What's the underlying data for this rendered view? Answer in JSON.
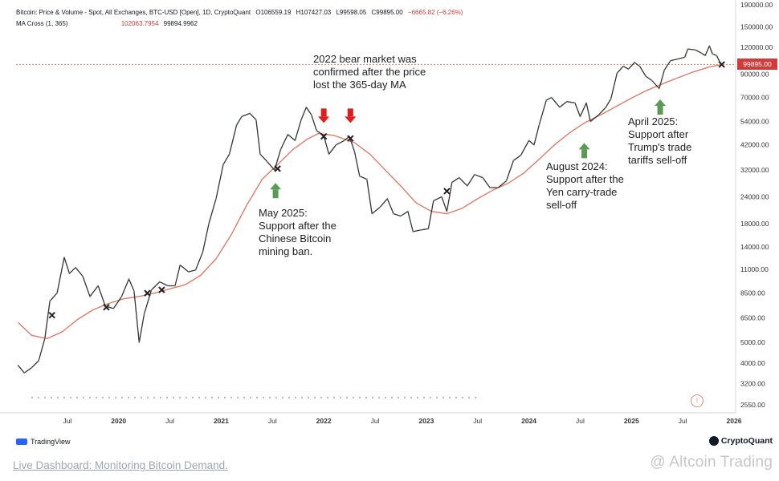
{
  "header": {
    "title": "Bitcoin: Price & Volume - Spot, All Exchanges, BTC-USD [Open], 1D, CryptoQuant",
    "o": "O106559.19",
    "h": "H107427.03",
    "l": "L99598.05",
    "c": "C99895.00",
    "chg": "−6665.82 (−6.26%)",
    "ma_label": "MA Cross (1, 365)",
    "ma_val1": "102063.7954",
    "ma_val2": "99894.9962"
  },
  "current_price_tag": "99895.00",
  "annotations": {
    "bear": "2022 bear market was\nconfirmed after the price\nlost the 365-day MA",
    "may": "May 2025:\nSupport after the\nChinese Bitcoin\nmining ban.",
    "aug": "August 2024:\nSupport after the\nYen carry-trade\nsell-off",
    "apr": "April 2025:\nSupport after\nTrump's trade\ntariffs sell-off"
  },
  "footer": {
    "tradingview": "TradingView",
    "cryptoquant": "CryptoQuant",
    "link": "Live Dashboard: Monitoring Bitcoin Demand.",
    "watermark": "@ Altcoin Trading",
    "event_icon": "!"
  },
  "chart_data": {
    "type": "line",
    "y_scale": "log",
    "ylim": [
      2550,
      190000
    ],
    "y_ticks": [
      "190000.00",
      "150000.00",
      "120000.00",
      "90000.00",
      "70000.00",
      "54000.00",
      "42000.00",
      "32000.00",
      "24000.00",
      "18000.00",
      "14000.00",
      "11000.00",
      "8500.00",
      "6500.00",
      "5000.00",
      "4000.00",
      "3200.00",
      "2550.00"
    ],
    "x_ticks": [
      {
        "label": "Jul",
        "t": 2019.5,
        "year": false
      },
      {
        "label": "2020",
        "t": 2020.0,
        "year": true
      },
      {
        "label": "Jul",
        "t": 2020.5,
        "year": false
      },
      {
        "label": "2021",
        "t": 2021.0,
        "year": true
      },
      {
        "label": "Jul",
        "t": 2021.5,
        "year": false
      },
      {
        "label": "2022",
        "t": 2022.0,
        "year": true
      },
      {
        "label": "Jul",
        "t": 2022.5,
        "year": false
      },
      {
        "label": "2023",
        "t": 2023.0,
        "year": true
      },
      {
        "label": "Jul",
        "t": 2023.5,
        "year": false
      },
      {
        "label": "2024",
        "t": 2024.0,
        "year": true
      },
      {
        "label": "Jul",
        "t": 2024.5,
        "year": false
      },
      {
        "label": "2025",
        "t": 2025.0,
        "year": true
      },
      {
        "label": "Jul",
        "t": 2025.5,
        "year": false
      },
      {
        "label": "2026",
        "t": 2026.0,
        "year": true
      }
    ],
    "xlim": [
      2019.0,
      2026.0
    ],
    "series": [
      {
        "role": "price",
        "color": "#333333",
        "points": [
          [
            2019.02,
            3900
          ],
          [
            2019.08,
            3600
          ],
          [
            2019.15,
            3800
          ],
          [
            2019.22,
            4100
          ],
          [
            2019.28,
            5200
          ],
          [
            2019.33,
            7800
          ],
          [
            2019.4,
            8500
          ],
          [
            2019.47,
            12500
          ],
          [
            2019.52,
            10500
          ],
          [
            2019.58,
            11200
          ],
          [
            2019.65,
            10200
          ],
          [
            2019.72,
            8200
          ],
          [
            2019.8,
            9200
          ],
          [
            2019.87,
            7400
          ],
          [
            2019.95,
            7200
          ],
          [
            2020.03,
            8200
          ],
          [
            2020.1,
            9900
          ],
          [
            2020.15,
            8700
          ],
          [
            2020.2,
            5000
          ],
          [
            2020.25,
            6800
          ],
          [
            2020.32,
            8800
          ],
          [
            2020.4,
            9600
          ],
          [
            2020.48,
            9200
          ],
          [
            2020.55,
            9200
          ],
          [
            2020.6,
            11500
          ],
          [
            2020.68,
            10700
          ],
          [
            2020.75,
            10900
          ],
          [
            2020.82,
            13200
          ],
          [
            2020.88,
            18000
          ],
          [
            2020.95,
            23500
          ],
          [
            2021.02,
            34000
          ],
          [
            2021.08,
            38000
          ],
          [
            2021.15,
            52000
          ],
          [
            2021.2,
            57000
          ],
          [
            2021.28,
            59000
          ],
          [
            2021.34,
            55000
          ],
          [
            2021.38,
            38000
          ],
          [
            2021.45,
            35000
          ],
          [
            2021.52,
            32000
          ],
          [
            2021.58,
            40000
          ],
          [
            2021.65,
            47000
          ],
          [
            2021.72,
            44000
          ],
          [
            2021.78,
            55000
          ],
          [
            2021.83,
            63000
          ],
          [
            2021.88,
            58000
          ],
          [
            2021.93,
            49000
          ],
          [
            2022.0,
            46500
          ],
          [
            2022.05,
            38000
          ],
          [
            2022.12,
            42000
          ],
          [
            2022.2,
            44000
          ],
          [
            2022.25,
            46000
          ],
          [
            2022.3,
            39000
          ],
          [
            2022.35,
            30000
          ],
          [
            2022.42,
            29000
          ],
          [
            2022.47,
            20000
          ],
          [
            2022.55,
            21500
          ],
          [
            2022.62,
            23500
          ],
          [
            2022.68,
            20000
          ],
          [
            2022.75,
            19500
          ],
          [
            2022.82,
            20500
          ],
          [
            2022.87,
            16500
          ],
          [
            2022.95,
            16800
          ],
          [
            2023.02,
            17000
          ],
          [
            2023.07,
            23000
          ],
          [
            2023.15,
            24000
          ],
          [
            2023.2,
            20500
          ],
          [
            2023.25,
            28000
          ],
          [
            2023.32,
            29500
          ],
          [
            2023.4,
            27000
          ],
          [
            2023.47,
            30500
          ],
          [
            2023.55,
            29500
          ],
          [
            2023.62,
            26500
          ],
          [
            2023.7,
            26500
          ],
          [
            2023.78,
            28500
          ],
          [
            2023.85,
            35500
          ],
          [
            2023.92,
            37500
          ],
          [
            2024.0,
            44000
          ],
          [
            2024.05,
            42000
          ],
          [
            2024.1,
            52000
          ],
          [
            2024.17,
            68000
          ],
          [
            2024.22,
            70000
          ],
          [
            2024.3,
            63000
          ],
          [
            2024.37,
            67000
          ],
          [
            2024.45,
            66000
          ],
          [
            2024.5,
            57000
          ],
          [
            2024.56,
            66000
          ],
          [
            2024.6,
            54000
          ],
          [
            2024.68,
            58000
          ],
          [
            2024.75,
            63000
          ],
          [
            2024.8,
            69000
          ],
          [
            2024.86,
            91000
          ],
          [
            2024.92,
            98000
          ],
          [
            2024.97,
            95000
          ],
          [
            2025.03,
            102000
          ],
          [
            2025.08,
            98000
          ],
          [
            2025.14,
            88000
          ],
          [
            2025.2,
            84000
          ],
          [
            2025.27,
            77000
          ],
          [
            2025.32,
            94000
          ],
          [
            2025.38,
            104000
          ],
          [
            2025.45,
            106000
          ],
          [
            2025.52,
            108000
          ],
          [
            2025.55,
            118000
          ],
          [
            2025.62,
            117000
          ],
          [
            2025.68,
            113000
          ],
          [
            2025.72,
            110000
          ],
          [
            2025.76,
            122000
          ],
          [
            2025.79,
            112000
          ],
          [
            2025.83,
            110000
          ],
          [
            2025.86,
            103000
          ],
          [
            2025.88,
            99895
          ]
        ]
      },
      {
        "role": "ma365",
        "color": "#e07b6a",
        "points": [
          [
            2019.02,
            6200
          ],
          [
            2019.15,
            5400
          ],
          [
            2019.3,
            5200
          ],
          [
            2019.45,
            5600
          ],
          [
            2019.6,
            6400
          ],
          [
            2019.75,
            7100
          ],
          [
            2019.9,
            7600
          ],
          [
            2020.05,
            8000
          ],
          [
            2020.2,
            8200
          ],
          [
            2020.35,
            8500
          ],
          [
            2020.5,
            8900
          ],
          [
            2020.65,
            9300
          ],
          [
            2020.8,
            10300
          ],
          [
            2020.95,
            12300
          ],
          [
            2021.1,
            16000
          ],
          [
            2021.25,
            22000
          ],
          [
            2021.4,
            29000
          ],
          [
            2021.55,
            34000
          ],
          [
            2021.7,
            40000
          ],
          [
            2021.85,
            45000
          ],
          [
            2021.95,
            47500
          ],
          [
            2022.1,
            46500
          ],
          [
            2022.3,
            43000
          ],
          [
            2022.45,
            38000
          ],
          [
            2022.6,
            32000
          ],
          [
            2022.75,
            27000
          ],
          [
            2022.9,
            22500
          ],
          [
            2023.05,
            20500
          ],
          [
            2023.2,
            20000
          ],
          [
            2023.35,
            21200
          ],
          [
            2023.5,
            23500
          ],
          [
            2023.65,
            25800
          ],
          [
            2023.8,
            27800
          ],
          [
            2023.95,
            31000
          ],
          [
            2024.1,
            36000
          ],
          [
            2024.25,
            42000
          ],
          [
            2024.4,
            48000
          ],
          [
            2024.55,
            53500
          ],
          [
            2024.7,
            58000
          ],
          [
            2024.85,
            63500
          ],
          [
            2025.0,
            69500
          ],
          [
            2025.15,
            75500
          ],
          [
            2025.3,
            81000
          ],
          [
            2025.45,
            86500
          ],
          [
            2025.6,
            92000
          ],
          [
            2025.75,
            97000
          ],
          [
            2025.88,
            99895
          ]
        ]
      }
    ],
    "arrows": [
      {
        "dir": "down",
        "color": "#e31b1b",
        "t": 2022.0,
        "price": 57000
      },
      {
        "dir": "down",
        "color": "#e31b1b",
        "t": 2022.26,
        "price": 57000
      },
      {
        "dir": "up",
        "color": "#5a9a55",
        "t": 2021.53,
        "price": 26000
      },
      {
        "dir": "up",
        "color": "#5a9a55",
        "t": 2024.54,
        "price": 40000
      },
      {
        "dir": "up",
        "color": "#5a9a55",
        "t": 2025.28,
        "price": 64000
      }
    ],
    "cross_markers": [
      [
        2019.35,
        6700
      ],
      [
        2019.88,
        7300
      ],
      [
        2020.28,
        8500
      ],
      [
        2020.42,
        8800
      ],
      [
        2021.55,
        32500
      ],
      [
        2022.0,
        46000
      ],
      [
        2022.26,
        45000
      ],
      [
        2023.2,
        25500
      ],
      [
        2025.88,
        99895
      ]
    ],
    "current_price": 99895,
    "current_price_line_color": "#d23b3b"
  }
}
